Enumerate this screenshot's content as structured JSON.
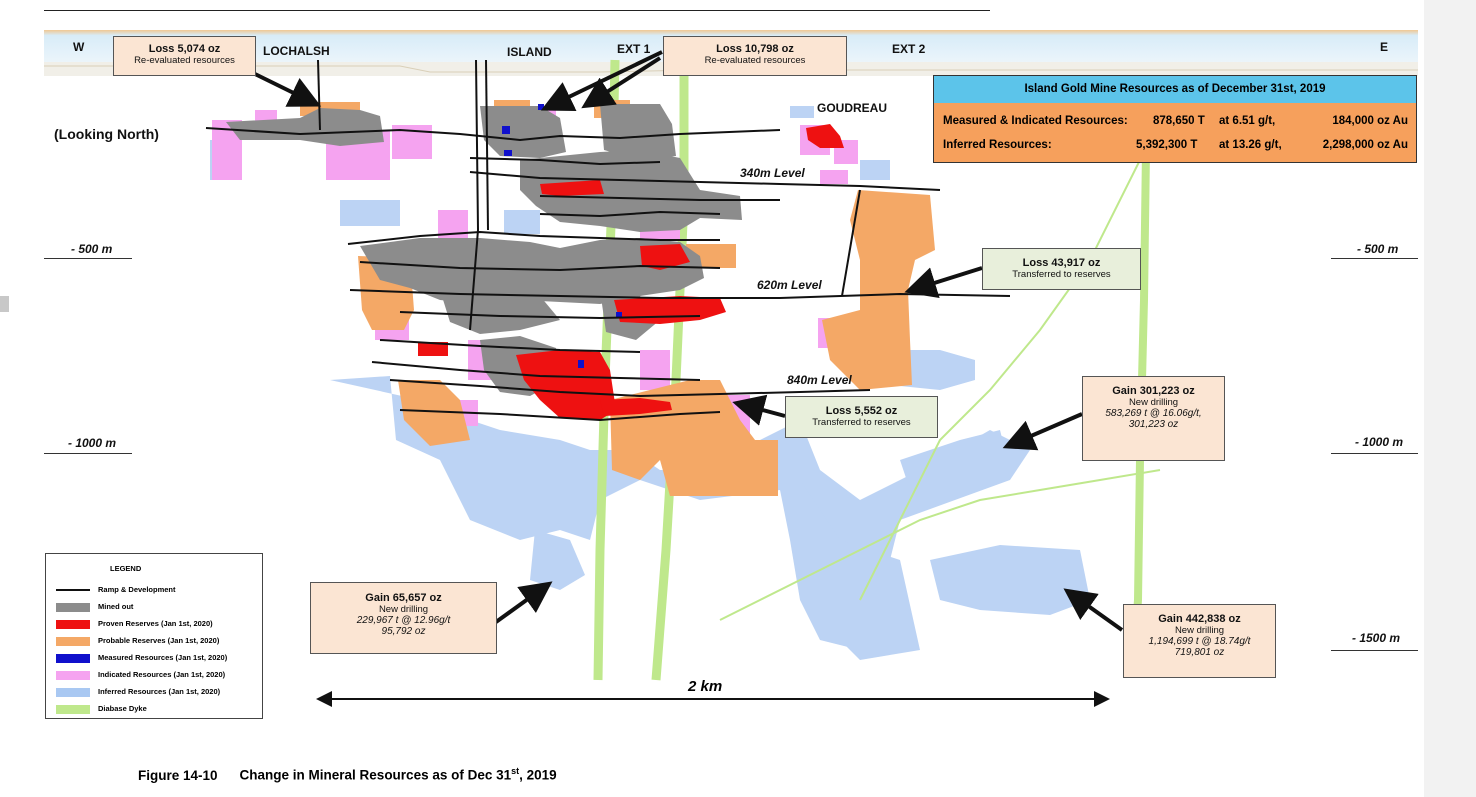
{
  "section": {
    "west": "W",
    "east": "E",
    "zones": [
      "LOCHALSH",
      "ISLAND",
      "EXT 1",
      "EXT 2",
      "GOUDREAU"
    ],
    "view": "(Looking North)",
    "levels": [
      "340m Level",
      "620m Level",
      "840m Level"
    ],
    "depths_left": [
      "- 500 m",
      "- 1000 m"
    ],
    "depths_right": [
      "- 500 m",
      "- 1000 m",
      "- 1500 m"
    ],
    "scale": "2 km"
  },
  "callouts": {
    "c1": {
      "head": "Loss 5,074 oz",
      "sub": "Re-evaluated resources"
    },
    "c2": {
      "head": "Loss 10,798 oz",
      "sub": "Re-evaluated resources"
    },
    "c3": {
      "head": "Loss 43,917 oz",
      "sub": "Transferred to reserves"
    },
    "c4": {
      "head": "Loss 5,552 oz",
      "sub": "Transferred to reserves"
    },
    "c5": {
      "head": "Gain 301,223 oz",
      "sub": "New drilling",
      "detail1": "583,269 t @ 16.06g/t,",
      "detail2": "301,223 oz"
    },
    "c6": {
      "head": "Gain 65,657 oz",
      "sub": "New drilling",
      "detail1": "229,967 t @ 12.96g/t",
      "detail2": "95,792 oz"
    },
    "c7": {
      "head": "Gain 442,838 oz",
      "sub": "New drilling",
      "detail1": "1,194,699 t @ 18.74g/t",
      "detail2": "719,801 oz"
    }
  },
  "summary": {
    "title": "Island Gold Mine Resources as of December 31st, 2019",
    "rows": [
      {
        "label": "Measured & Indicated Resources:",
        "tonnes": "878,650 T",
        "grade": "at 6.51 g/t,",
        "ounces": "184,000 oz Au"
      },
      {
        "label": "Inferred Resources:",
        "tonnes": "5,392,300 T",
        "grade": "at 13.26 g/t,",
        "ounces": "2,298,000 oz Au"
      }
    ]
  },
  "legend": {
    "title": "LEGEND",
    "items": [
      {
        "label": "Ramp & Development",
        "color": "#111111",
        "kind": "line"
      },
      {
        "label": "Mined out",
        "color": "#8c8c8c",
        "kind": "box"
      },
      {
        "label": "Proven Reserves (Jan 1st, 2020)",
        "color": "#ee1111",
        "kind": "box"
      },
      {
        "label": "Probable Reserves (Jan 1st, 2020)",
        "color": "#f4a866",
        "kind": "box"
      },
      {
        "label": "Measured Resources (Jan 1st, 2020)",
        "color": "#1010cc",
        "kind": "box"
      },
      {
        "label": "Indicated Resources (Jan 1st, 2020)",
        "color": "#f5a3f0",
        "kind": "box"
      },
      {
        "label": "Inferred Resources (Jan 1st, 2020)",
        "color": "#a9c8f2",
        "kind": "box"
      },
      {
        "label": "Diabase Dyke",
        "color": "#bfe88c",
        "kind": "box"
      }
    ]
  },
  "caption": {
    "number": "Figure 14-10",
    "text_before": "Change in Mineral Resources as of Dec 31",
    "superscript": "st",
    "text_after": ", 2019"
  }
}
